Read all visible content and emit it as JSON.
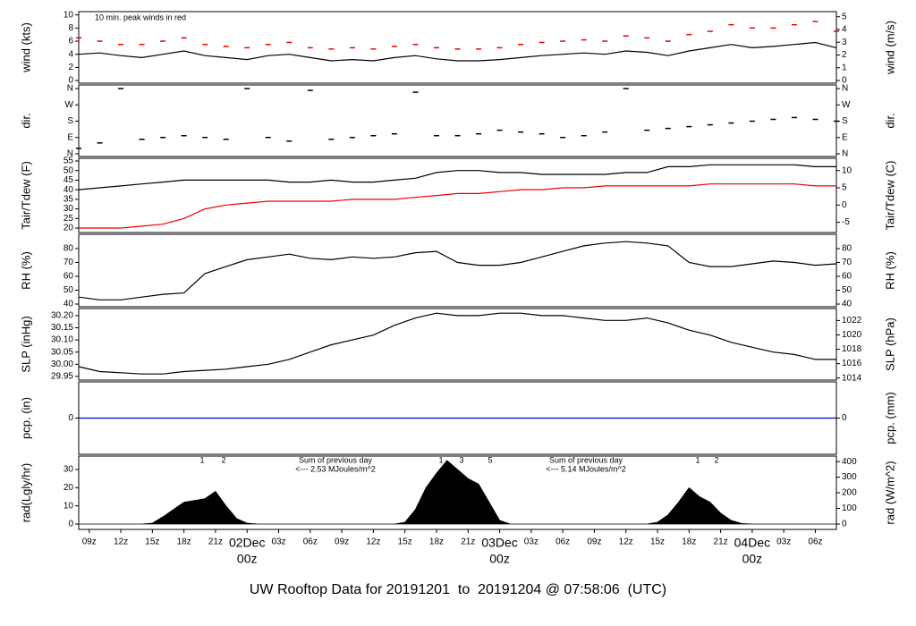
{
  "title": "UW Rooftop Data for 20191201  to  20191204 @ 07:58:06  (UTC)",
  "title_color": "#0000cc",
  "chart_data": [
    {
      "type": "line",
      "ylabel": "wind (kts)",
      "y2label": "wind (m/s)",
      "annotations": [
        "10 min. peak winds in red"
      ],
      "annotation_color": "#ee0000",
      "x": [
        8,
        10,
        12,
        14,
        16,
        18,
        20,
        22,
        24,
        26,
        28,
        30,
        32,
        34,
        36,
        38,
        40,
        42,
        44,
        46,
        48,
        50,
        52,
        54,
        56,
        58,
        60,
        62,
        64,
        66,
        68,
        70,
        72,
        74,
        76,
        78,
        80
      ],
      "xlim": [
        8,
        80
      ],
      "ylim": [
        -0.4,
        10.5
      ],
      "yticks": [
        0,
        2,
        4,
        6,
        8,
        10
      ],
      "y2lim": [
        -0.21,
        5.4
      ],
      "y2ticks": [
        0,
        1,
        2,
        3,
        4,
        5
      ],
      "series": [
        {
          "kind": "dash",
          "color": "#ee0000",
          "values": [
            6.5,
            6,
            5.5,
            5.5,
            6,
            6.5,
            5.5,
            5.2,
            5,
            5.5,
            5.8,
            5,
            4.8,
            5,
            4.8,
            5.2,
            5.5,
            5,
            4.8,
            4.8,
            5,
            5.5,
            5.8,
            6,
            6.2,
            6,
            6.8,
            6.5,
            6,
            7,
            7.5,
            8.5,
            8,
            8,
            8.5,
            9,
            7.5
          ]
        },
        {
          "kind": "line",
          "color": "#000000",
          "values": [
            4,
            4.2,
            3.8,
            3.5,
            4,
            4.5,
            3.8,
            3.5,
            3.2,
            3.8,
            4,
            3.5,
            3,
            3.2,
            3,
            3.5,
            3.8,
            3.3,
            3,
            3,
            3.2,
            3.5,
            3.8,
            4,
            4.2,
            4,
            4.5,
            4.3,
            3.8,
            4.5,
            5,
            5.5,
            5,
            5.2,
            5.5,
            5.8,
            5
          ]
        }
      ]
    },
    {
      "type": "scatter",
      "ylabel": "dir.",
      "y2label": "dir.",
      "x": [
        8,
        10,
        12,
        14,
        16,
        18,
        20,
        22,
        24,
        26,
        28,
        30,
        32,
        34,
        36,
        38,
        40,
        42,
        44,
        46,
        48,
        50,
        52,
        54,
        56,
        58,
        60,
        62,
        64,
        66,
        68,
        70,
        72,
        74,
        76,
        78,
        80
      ],
      "xlim": [
        8,
        80
      ],
      "ylim": [
        -15,
        380
      ],
      "yticks": [
        {
          "value": 0,
          "label": "N"
        },
        {
          "value": 90,
          "label": "E"
        },
        {
          "value": 180,
          "label": "S"
        },
        {
          "value": 270,
          "label": "W"
        },
        {
          "value": 360,
          "label": "N"
        }
      ],
      "series": [
        {
          "kind": "dash",
          "color": "#000000",
          "values": [
            30,
            60,
            360,
            80,
            90,
            100,
            90,
            80,
            360,
            90,
            70,
            350,
            80,
            90,
            100,
            110,
            340,
            100,
            100,
            110,
            130,
            120,
            110,
            90,
            100,
            120,
            360,
            130,
            140,
            150,
            160,
            170,
            180,
            190,
            200,
            190,
            180
          ]
        }
      ]
    },
    {
      "type": "line",
      "ylabel": "Tair/Tdew (F)",
      "y2label": "Tair/Tdew (C)",
      "x": [
        8,
        10,
        12,
        14,
        16,
        18,
        20,
        22,
        24,
        26,
        28,
        30,
        32,
        34,
        36,
        38,
        40,
        42,
        44,
        46,
        48,
        50,
        52,
        54,
        56,
        58,
        60,
        62,
        64,
        66,
        68,
        70,
        72,
        74,
        76,
        78,
        80
      ],
      "xlim": [
        8,
        80
      ],
      "ylim": [
        17.67,
        56.4
      ],
      "yticks": [
        20,
        25,
        30,
        35,
        40,
        45,
        50,
        55
      ],
      "y2lim": [
        -7.96,
        13.56
      ],
      "y2ticks": [
        -5,
        0,
        5,
        10
      ],
      "series": [
        {
          "kind": "line",
          "color": "#000000",
          "values": [
            40,
            41,
            42,
            43,
            44,
            45,
            45,
            45,
            45,
            45,
            44,
            44,
            45,
            44,
            44,
            45,
            46,
            49,
            50,
            50,
            49,
            49,
            48,
            48,
            48,
            48,
            49,
            49,
            52,
            52,
            53,
            53,
            53,
            53,
            53,
            52,
            52
          ]
        },
        {
          "kind": "line",
          "color": "#ee0000",
          "values": [
            20,
            20,
            20,
            21,
            22,
            25,
            30,
            32,
            33,
            34,
            34,
            34,
            34,
            35,
            35,
            35,
            36,
            37,
            38,
            38,
            39,
            40,
            40,
            41,
            41,
            42,
            42,
            42,
            42,
            42,
            43,
            43,
            43,
            43,
            43,
            42,
            42
          ]
        }
      ]
    },
    {
      "type": "line",
      "ylabel": "RH (%)",
      "y2label": "RH (%)",
      "x": [
        8,
        10,
        12,
        14,
        16,
        18,
        20,
        22,
        24,
        26,
        28,
        30,
        32,
        34,
        36,
        38,
        40,
        42,
        44,
        46,
        48,
        50,
        52,
        54,
        56,
        58,
        60,
        62,
        64,
        66,
        68,
        70,
        72,
        74,
        76,
        78,
        80
      ],
      "xlim": [
        8,
        80
      ],
      "ylim": [
        38.06,
        90.3
      ],
      "yticks": [
        40,
        50,
        60,
        70,
        80
      ],
      "y2lim": [
        38.06,
        90.3
      ],
      "y2ticks": [
        40,
        50,
        60,
        70,
        80
      ],
      "series": [
        {
          "kind": "line",
          "color": "#000000",
          "values": [
            45,
            43,
            43,
            45,
            47,
            48,
            62,
            67,
            72,
            74,
            76,
            73,
            72,
            74,
            73,
            74,
            77,
            78,
            70,
            68,
            68,
            70,
            74,
            78,
            82,
            84,
            85,
            84,
            82,
            70,
            67,
            67,
            69,
            71,
            70,
            68,
            69
          ]
        }
      ]
    },
    {
      "type": "line",
      "ylabel": "SLP (inHg)",
      "y2label": "SLP (hPa)",
      "x": [
        8,
        10,
        12,
        14,
        16,
        18,
        20,
        22,
        24,
        26,
        28,
        30,
        32,
        34,
        36,
        38,
        40,
        42,
        44,
        46,
        48,
        50,
        52,
        54,
        56,
        58,
        60,
        62,
        64,
        66,
        68,
        70,
        72,
        74,
        76,
        78,
        80
      ],
      "xlim": [
        8,
        80
      ],
      "ylim": [
        29.935,
        30.229
      ],
      "yticks": [
        {
          "value": 29.95,
          "label": "29.95"
        },
        {
          "value": 30,
          "label": "30.00"
        },
        {
          "value": 30.05,
          "label": "30.05"
        },
        {
          "value": 30.1,
          "label": "30.10"
        },
        {
          "value": 30.15,
          "label": "30.15"
        },
        {
          "value": 30.2,
          "label": "30.20"
        }
      ],
      "y2lim": [
        1013.71,
        1023.67
      ],
      "y2ticks": [
        1014,
        1016,
        1018,
        1020,
        1022
      ],
      "series": [
        {
          "kind": "line",
          "color": "#000000",
          "values": [
            29.99,
            29.97,
            29.965,
            29.96,
            29.96,
            29.97,
            29.975,
            29.98,
            29.99,
            30,
            30.02,
            30.05,
            30.08,
            30.1,
            30.12,
            30.16,
            30.19,
            30.21,
            30.2,
            30.2,
            30.21,
            30.21,
            30.2,
            30.2,
            30.19,
            30.18,
            30.18,
            30.19,
            30.17,
            30.14,
            30.12,
            30.09,
            30.07,
            30.05,
            30.04,
            30.02,
            30.02
          ]
        }
      ]
    },
    {
      "type": "line",
      "ylabel": "pcp. (in)",
      "y2label": "pcp. (mm)",
      "x": [
        8,
        80
      ],
      "xlim": [
        8,
        80
      ],
      "ylim": [
        -0.1,
        0.1
      ],
      "yticks": [
        0
      ],
      "y2lim": [
        -2.54,
        2.54
      ],
      "y2ticks": [
        0
      ],
      "series": [
        {
          "kind": "line",
          "color": "#0000cc",
          "values": [
            0,
            0
          ]
        }
      ]
    },
    {
      "type": "area",
      "ylabel": "rad(Lgly/hr)",
      "y2label": "rad (W/m^2)",
      "annotations": [
        "1",
        "2",
        "Sum of previous day",
        "<--- 2.53 MJoules/m^2",
        "1",
        "3",
        "5",
        "Sum of previous day",
        "<--- 5.14 MJoules/m^2",
        "1",
        "2"
      ],
      "annotation_color": "#9933cc",
      "x": [
        8,
        9,
        10,
        11,
        12,
        13,
        14,
        15,
        16,
        17,
        18,
        19,
        20,
        21,
        22,
        23,
        24,
        25,
        26,
        27,
        28,
        29,
        30,
        31,
        32,
        33,
        34,
        35,
        36,
        37,
        38,
        39,
        40,
        41,
        42,
        43,
        44,
        45,
        46,
        47,
        48,
        49,
        50,
        51,
        52,
        53,
        54,
        55,
        56,
        57,
        58,
        59,
        60,
        61,
        62,
        63,
        64,
        65,
        66,
        67,
        68,
        69,
        70,
        71,
        72,
        73,
        74,
        75,
        76,
        77,
        78,
        79,
        80
      ],
      "xlim": [
        8,
        80
      ],
      "ylim": [
        -2.95,
        37.4
      ],
      "yticks": [
        0,
        10,
        20,
        30
      ],
      "y2lim": [
        -34.3,
        435
      ],
      "y2ticks": [
        0,
        100,
        200,
        300,
        400
      ],
      "xticks": [
        {
          "value": 9,
          "label": "09z"
        },
        {
          "value": 12,
          "label": "12z"
        },
        {
          "value": 15,
          "label": "15z"
        },
        {
          "value": 18,
          "label": "18z"
        },
        {
          "value": 21,
          "label": "21z"
        },
        {
          "value": 24,
          "label": "00z"
        },
        {
          "value": 27,
          "label": "03z"
        },
        {
          "value": 30,
          "label": "06z"
        },
        {
          "value": 33,
          "label": "09z"
        },
        {
          "value": 36,
          "label": "12z"
        },
        {
          "value": 39,
          "label": "15z"
        },
        {
          "value": 42,
          "label": "18z"
        },
        {
          "value": 45,
          "label": "21z"
        },
        {
          "value": 48,
          "label": "00z"
        },
        {
          "value": 51,
          "label": "03z"
        },
        {
          "value": 54,
          "label": "06z"
        },
        {
          "value": 57,
          "label": "09z"
        },
        {
          "value": 60,
          "label": "12z"
        },
        {
          "value": 63,
          "label": "15z"
        },
        {
          "value": 66,
          "label": "18z"
        },
        {
          "value": 69,
          "label": "21z"
        },
        {
          "value": 72,
          "label": "00z"
        },
        {
          "value": 75,
          "label": "03z"
        },
        {
          "value": 78,
          "label": "06z"
        }
      ],
      "day_labels": [
        {
          "value": 24,
          "label": "02Dec"
        },
        {
          "value": 48,
          "label": "03Dec"
        },
        {
          "value": 72,
          "label": "04Dec"
        }
      ],
      "day_color": "#ee0000",
      "series": [
        {
          "kind": "area",
          "color": "#000000",
          "values": [
            0,
            0,
            0,
            0,
            0,
            0,
            0,
            0.5,
            4,
            8,
            12,
            13,
            14,
            18,
            10,
            3,
            0.5,
            0,
            0,
            0,
            0,
            0,
            0,
            0,
            0,
            0,
            0,
            0,
            0,
            0,
            0,
            1,
            8,
            20,
            28,
            35,
            30,
            25,
            22,
            12,
            2,
            0,
            0,
            0,
            0,
            0,
            0,
            0,
            0,
            0,
            0,
            0,
            0,
            0,
            0,
            1,
            5,
            12,
            20,
            15,
            12,
            6,
            2,
            0.3,
            0,
            0,
            0,
            0,
            0,
            0,
            0,
            0,
            0
          ]
        }
      ]
    }
  ]
}
